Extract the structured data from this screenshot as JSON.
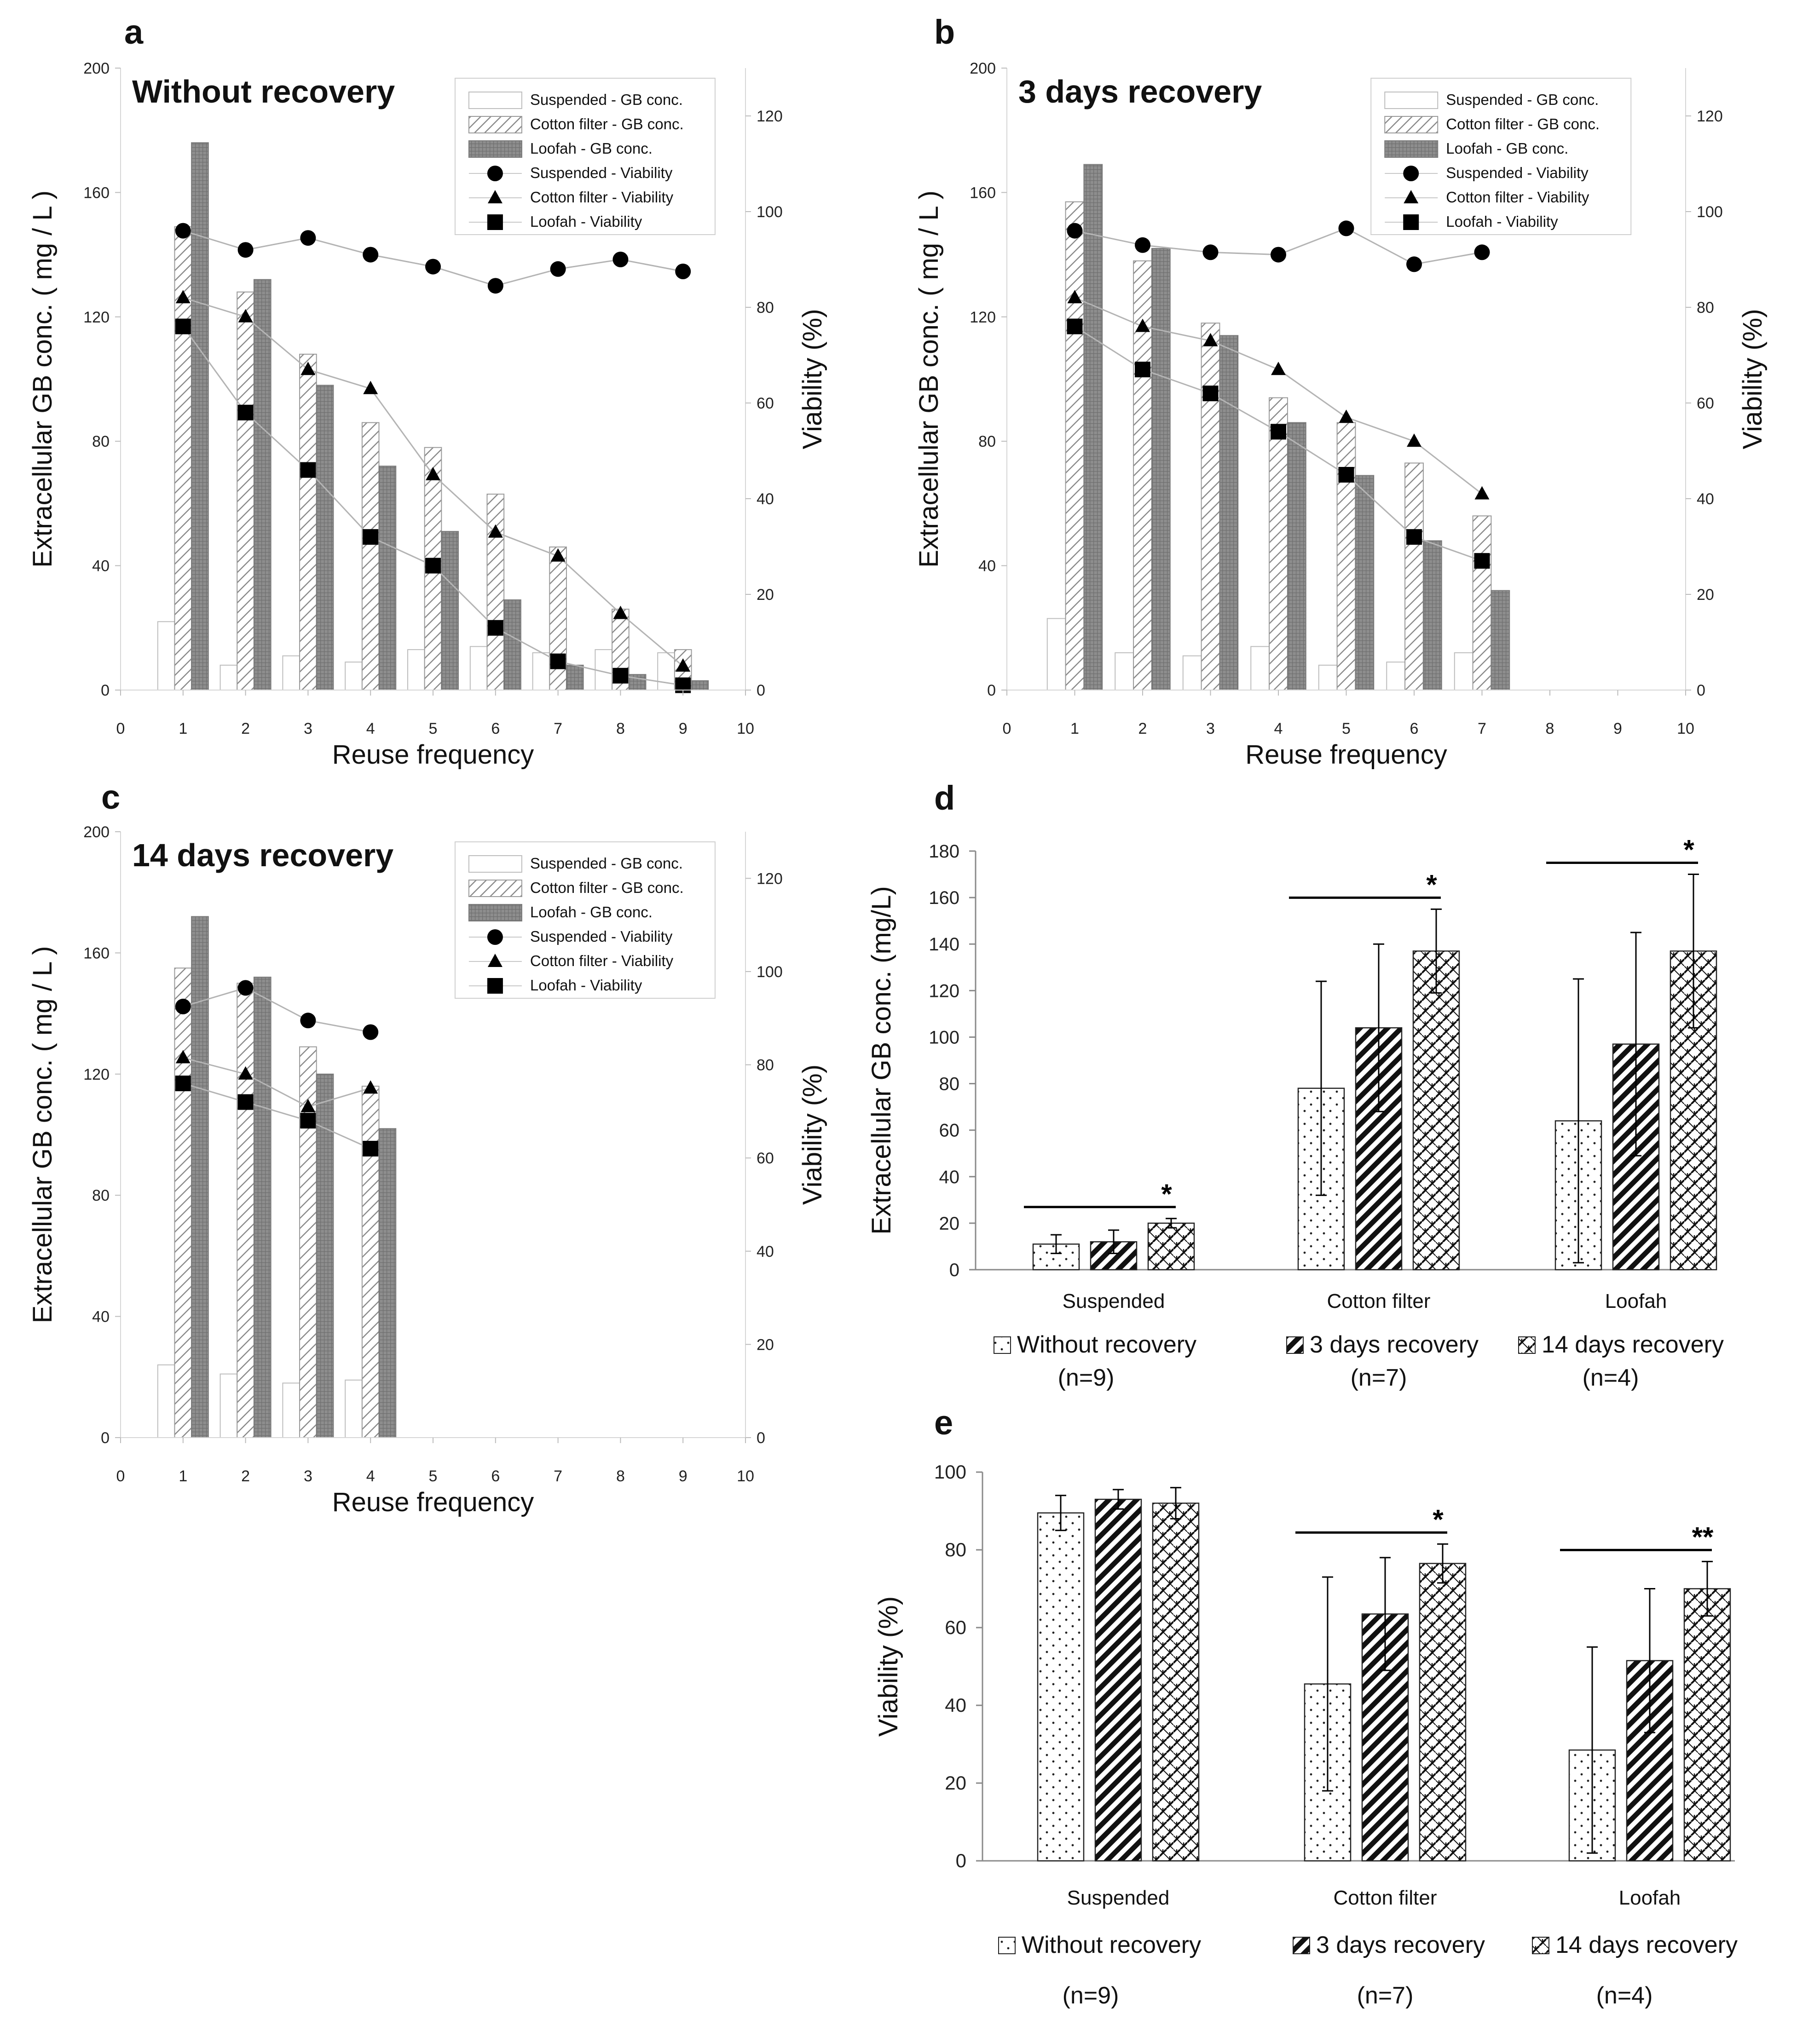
{
  "chart_data": [
    {
      "panel": "a",
      "type": "bar+line",
      "title": "Without recovery",
      "xlabel": "Reuse frequency",
      "ylabel": "Extracellular GB conc. ( mg / L )",
      "y2label": "Viability (%)",
      "xlim": [
        0,
        10
      ],
      "ylim": [
        0,
        200
      ],
      "y2lim": [
        0,
        130
      ],
      "xticks": [
        "0",
        "1",
        "2",
        "3",
        "4",
        "5",
        "6",
        "7",
        "8",
        "9",
        "10"
      ],
      "yticks": [
        "0",
        "40",
        "80",
        "120",
        "160",
        "200"
      ],
      "y2ticks": [
        "0",
        "20",
        "40",
        "60",
        "80",
        "100",
        "120"
      ],
      "x": [
        1,
        2,
        3,
        4,
        5,
        6,
        7,
        8,
        9
      ],
      "bars": [
        {
          "name": "Suspended - GB conc.",
          "values": [
            22,
            8,
            11,
            9,
            13,
            14,
            12,
            13,
            12
          ]
        },
        {
          "name": "Cotton filter - GB conc.",
          "values": [
            149,
            128,
            108,
            86,
            78,
            63,
            46,
            26,
            13
          ]
        },
        {
          "name": "Loofah - GB conc.",
          "values": [
            176,
            132,
            98,
            72,
            51,
            29,
            8,
            5,
            3
          ]
        }
      ],
      "lines": [
        {
          "name": "Suspended - Viability",
          "marker": "circle",
          "values": [
            96,
            92,
            94.5,
            91,
            88.5,
            84.5,
            88,
            90,
            87.5
          ]
        },
        {
          "name": "Cotton filter - Viability",
          "marker": "triangle",
          "values": [
            82,
            78,
            67,
            63,
            45,
            33,
            28,
            16,
            5
          ]
        },
        {
          "name": "Loofah - Viability",
          "marker": "square",
          "values": [
            76,
            58,
            46,
            32,
            26,
            13,
            6,
            3,
            1
          ]
        }
      ]
    },
    {
      "panel": "b",
      "type": "bar+line",
      "title": "3 days recovery",
      "xlabel": "Reuse frequency",
      "ylabel": "Extracellular GB conc. ( mg / L )",
      "y2label": "Viability (%)",
      "xlim": [
        0,
        10
      ],
      "ylim": [
        0,
        200
      ],
      "y2lim": [
        0,
        130
      ],
      "xticks": [
        "0",
        "1",
        "2",
        "3",
        "4",
        "5",
        "6",
        "7",
        "8",
        "9",
        "10"
      ],
      "yticks": [
        "0",
        "40",
        "80",
        "120",
        "160",
        "200"
      ],
      "y2ticks": [
        "0",
        "20",
        "40",
        "60",
        "80",
        "100",
        "120"
      ],
      "x": [
        1,
        2,
        3,
        4,
        5,
        6,
        7
      ],
      "bars": [
        {
          "name": "Suspended - GB conc.",
          "values": [
            23,
            12,
            11,
            14,
            8,
            9,
            12
          ]
        },
        {
          "name": "Cotton filter - GB conc.",
          "values": [
            157,
            138,
            118,
            94,
            86,
            73,
            56
          ]
        },
        {
          "name": "Loofah - GB conc.",
          "values": [
            169,
            142,
            114,
            86,
            69,
            48,
            32
          ]
        }
      ],
      "lines": [
        {
          "name": "Suspended - Viability",
          "marker": "circle",
          "values": [
            96,
            93,
            91.5,
            91,
            96.5,
            89,
            91.5
          ]
        },
        {
          "name": "Cotton filter - Viability",
          "marker": "triangle",
          "values": [
            82,
            76,
            73,
            67,
            57,
            52,
            41
          ]
        },
        {
          "name": "Loofah - Viability",
          "marker": "square",
          "values": [
            76,
            67,
            62,
            54,
            45,
            32,
            27
          ]
        }
      ]
    },
    {
      "panel": "c",
      "type": "bar+line",
      "title": "14 days recovery",
      "xlabel": "Reuse frequency",
      "ylabel": "Extracellular GB conc. ( mg / L )",
      "y2label": "Viability (%)",
      "xlim": [
        0,
        10
      ],
      "ylim": [
        0,
        200
      ],
      "y2lim": [
        0,
        130
      ],
      "xticks": [
        "0",
        "1",
        "2",
        "3",
        "4",
        "5",
        "6",
        "7",
        "8",
        "9",
        "10"
      ],
      "yticks": [
        "0",
        "40",
        "80",
        "120",
        "160",
        "200"
      ],
      "y2ticks": [
        "0",
        "20",
        "40",
        "60",
        "80",
        "100",
        "120"
      ],
      "x": [
        1,
        2,
        3,
        4
      ],
      "bars": [
        {
          "name": "Suspended - GB conc.",
          "values": [
            24,
            21,
            18,
            19
          ]
        },
        {
          "name": "Cotton filter - GB conc.",
          "values": [
            155,
            150,
            129,
            116
          ]
        },
        {
          "name": "Loofah - GB conc.",
          "values": [
            172,
            152,
            120,
            102
          ]
        }
      ],
      "lines": [
        {
          "name": "Suspended - Viability",
          "marker": "circle",
          "values": [
            92.5,
            96.5,
            89.5,
            87
          ]
        },
        {
          "name": "Cotton filter - Viability",
          "marker": "triangle",
          "values": [
            81.5,
            78,
            71,
            75
          ]
        },
        {
          "name": "Loofah - Viability",
          "marker": "square",
          "values": [
            76,
            72,
            68,
            62
          ]
        }
      ]
    },
    {
      "panel": "d",
      "type": "bar",
      "ylabel": "Extracellular  GB conc. (mg/L)",
      "ylim": [
        0,
        180
      ],
      "yticks": [
        "0",
        "20",
        "40",
        "60",
        "80",
        "100",
        "120",
        "140",
        "160",
        "180"
      ],
      "categories": [
        "Suspended",
        "Cotton filter",
        "Loofah"
      ],
      "series": [
        {
          "name": "Without recovery",
          "n": "(n=9)",
          "pattern": "dots",
          "values": [
            11,
            78,
            64
          ],
          "errors": [
            4,
            46,
            61
          ]
        },
        {
          "name": "3 days recovery",
          "n": "(n=7)",
          "pattern": "diag",
          "values": [
            12,
            104,
            97
          ],
          "errors": [
            5,
            36,
            48
          ]
        },
        {
          "name": "14 days recovery",
          "n": "(n=4)",
          "pattern": "weave",
          "values": [
            20,
            137,
            137
          ],
          "errors": [
            2,
            18,
            33
          ]
        }
      ],
      "significance": [
        "*",
        "*",
        "*"
      ]
    },
    {
      "panel": "e",
      "type": "bar",
      "ylabel": "Viability (%)",
      "ylim": [
        0,
        100
      ],
      "yticks": [
        "0",
        "20",
        "40",
        "60",
        "80",
        "100"
      ],
      "categories": [
        "Suspended",
        "Cotton filter",
        "Loofah"
      ],
      "series": [
        {
          "name": "Without recovery",
          "n": "(n=9)",
          "pattern": "dots",
          "values": [
            89.5,
            45.5,
            28.5
          ],
          "errors": [
            4.5,
            27.5,
            26.5
          ]
        },
        {
          "name": "3 days recovery",
          "n": "(n=7)",
          "pattern": "diag",
          "values": [
            93,
            63.5,
            51.5
          ],
          "errors": [
            2.5,
            14.5,
            18.5
          ]
        },
        {
          "name": "14 days recovery",
          "n": "(n=4)",
          "pattern": "weave",
          "values": [
            92,
            76.5,
            70
          ],
          "errors": [
            4,
            5,
            7
          ]
        }
      ],
      "significance": [
        "",
        "*",
        "**"
      ]
    }
  ]
}
